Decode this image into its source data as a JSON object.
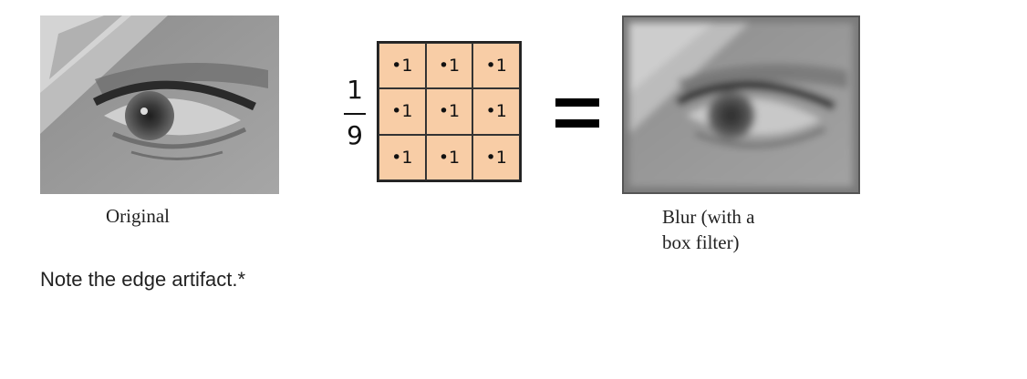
{
  "captions": {
    "original": "Original",
    "blur_line1": "Blur (with a",
    "blur_line2": "box filter)"
  },
  "fraction": {
    "numerator": "1",
    "denominator": "9"
  },
  "kernel": {
    "cells": [
      "•1",
      "•1",
      "•1",
      "•1",
      "•1",
      "•1",
      "•1",
      "•1",
      "•1"
    ],
    "fill_color": "#f8cda6"
  },
  "note": "Note the edge artifact.*"
}
